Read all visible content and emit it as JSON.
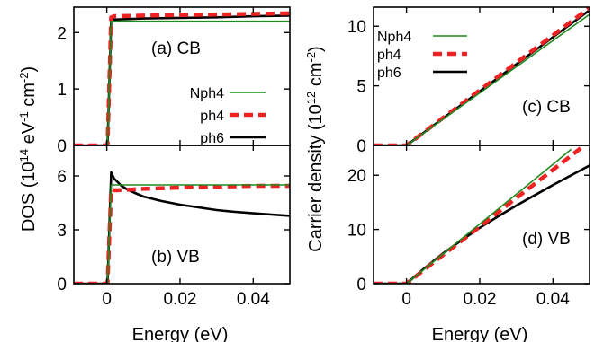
{
  "colors": {
    "nph4": "#1f8a1f",
    "ph4": "#ee2222",
    "ph6": "#000000"
  },
  "shared": {
    "left_ylabel": "DOS (10",
    "left_ylabel_exp1": "14",
    "left_ylabel_mid": " eV",
    "left_ylabel_exp2": "-1",
    "left_ylabel_mid2": " cm",
    "left_ylabel_exp3": "-2",
    "left_ylabel_end": ")",
    "right_ylabel": "Carrier density (10",
    "right_ylabel_exp1": "12",
    "right_ylabel_mid": " cm",
    "right_ylabel_exp2": "-2",
    "right_ylabel_end": ")",
    "xlabel": "Energy (eV)",
    "legend": [
      "Nph4",
      "ph4",
      "ph6"
    ]
  },
  "chart_data": [
    {
      "id": "a",
      "type": "line",
      "label": "(a) CB",
      "xlim": [
        -0.009,
        0.05
      ],
      "ylim": [
        0,
        2.45
      ],
      "yticks": [
        0,
        1,
        2
      ],
      "xticks": [
        0,
        0.02,
        0.04
      ],
      "series": [
        {
          "name": "Nph4",
          "x": [
            -0.009,
            0.0,
            0.0002,
            0.0012,
            0.05
          ],
          "y": [
            0,
            0,
            0,
            2.2,
            2.2
          ]
        },
        {
          "name": "ph4",
          "x": [
            -0.009,
            0.0,
            0.0002,
            0.0012,
            0.002,
            0.01,
            0.02,
            0.03,
            0.04,
            0.05
          ],
          "y": [
            0,
            0,
            0,
            2.27,
            2.29,
            2.3,
            2.31,
            2.32,
            2.33,
            2.34
          ]
        },
        {
          "name": "ph6",
          "x": [
            -0.009,
            0.0,
            0.0002,
            0.0012,
            0.002,
            0.01,
            0.02,
            0.03,
            0.04,
            0.05
          ],
          "y": [
            0,
            0,
            0,
            2.22,
            2.23,
            2.25,
            2.26,
            2.27,
            2.29,
            2.3
          ]
        }
      ]
    },
    {
      "id": "b",
      "type": "line",
      "label": "(b) VB",
      "xlim": [
        -0.009,
        0.05
      ],
      "ylim": [
        0,
        7.7
      ],
      "yticks": [
        0,
        3,
        6
      ],
      "xticks": [
        0,
        0.02,
        0.04
      ],
      "series": [
        {
          "name": "Nph4",
          "x": [
            -0.009,
            0.0,
            0.0002,
            0.0012,
            0.05
          ],
          "y": [
            0,
            0,
            0,
            5.5,
            5.5
          ]
        },
        {
          "name": "ph4",
          "x": [
            -0.009,
            0.0,
            0.0002,
            0.0012,
            0.002,
            0.005,
            0.01,
            0.02,
            0.03,
            0.04,
            0.05
          ],
          "y": [
            0,
            0,
            0,
            5.25,
            5.2,
            5.22,
            5.28,
            5.35,
            5.4,
            5.45,
            5.45
          ]
        },
        {
          "name": "ph6",
          "x": [
            -0.009,
            0.0,
            0.0002,
            0.0012,
            0.002,
            0.004,
            0.006,
            0.01,
            0.015,
            0.02,
            0.025,
            0.03,
            0.035,
            0.04,
            0.045,
            0.05
          ],
          "y": [
            0,
            0,
            0,
            6.2,
            5.85,
            5.45,
            5.2,
            4.85,
            4.6,
            4.4,
            4.25,
            4.1,
            4.0,
            3.92,
            3.85,
            3.78
          ]
        }
      ]
    },
    {
      "id": "c",
      "type": "line",
      "label": "(c) CB",
      "xlim": [
        -0.009,
        0.05
      ],
      "ylim": [
        0,
        11.6
      ],
      "yticks": [
        0,
        5,
        10
      ],
      "xticks": [
        0,
        0.02,
        0.04
      ],
      "legend": "top-left",
      "series": [
        {
          "name": "Nph4",
          "x": [
            -0.009,
            0.0,
            0.05
          ],
          "y": [
            0,
            0,
            11.0
          ]
        },
        {
          "name": "ph4",
          "x": [
            -0.009,
            0.0,
            0.05
          ],
          "y": [
            0,
            0,
            11.55
          ]
        },
        {
          "name": "ph6",
          "x": [
            -0.009,
            0.0,
            0.05
          ],
          "y": [
            0,
            0,
            11.35
          ]
        }
      ]
    },
    {
      "id": "d",
      "type": "line",
      "label": "(d) VB",
      "xlim": [
        -0.009,
        0.05
      ],
      "ylim": [
        0,
        25.5
      ],
      "yticks": [
        0,
        10,
        20
      ],
      "xticks": [
        0,
        0.02,
        0.04
      ],
      "series": [
        {
          "name": "Nph4",
          "x": [
            -0.009,
            0.0,
            0.01,
            0.02,
            0.03,
            0.04,
            0.045
          ],
          "y": [
            0,
            0,
            5.5,
            11.0,
            16.5,
            22.0,
            24.8
          ]
        },
        {
          "name": "ph4",
          "x": [
            -0.009,
            0.0,
            0.01,
            0.02,
            0.03,
            0.04,
            0.048
          ],
          "y": [
            0,
            0,
            5.3,
            10.5,
            15.8,
            21.0,
            25.2
          ]
        },
        {
          "name": "ph6",
          "x": [
            -0.009,
            0.0,
            0.005,
            0.01,
            0.015,
            0.02,
            0.025,
            0.03,
            0.035,
            0.04,
            0.045,
            0.05
          ],
          "y": [
            0,
            0,
            2.9,
            5.6,
            8.0,
            10.3,
            12.4,
            14.4,
            16.3,
            18.2,
            20.0,
            21.8
          ]
        }
      ]
    }
  ]
}
